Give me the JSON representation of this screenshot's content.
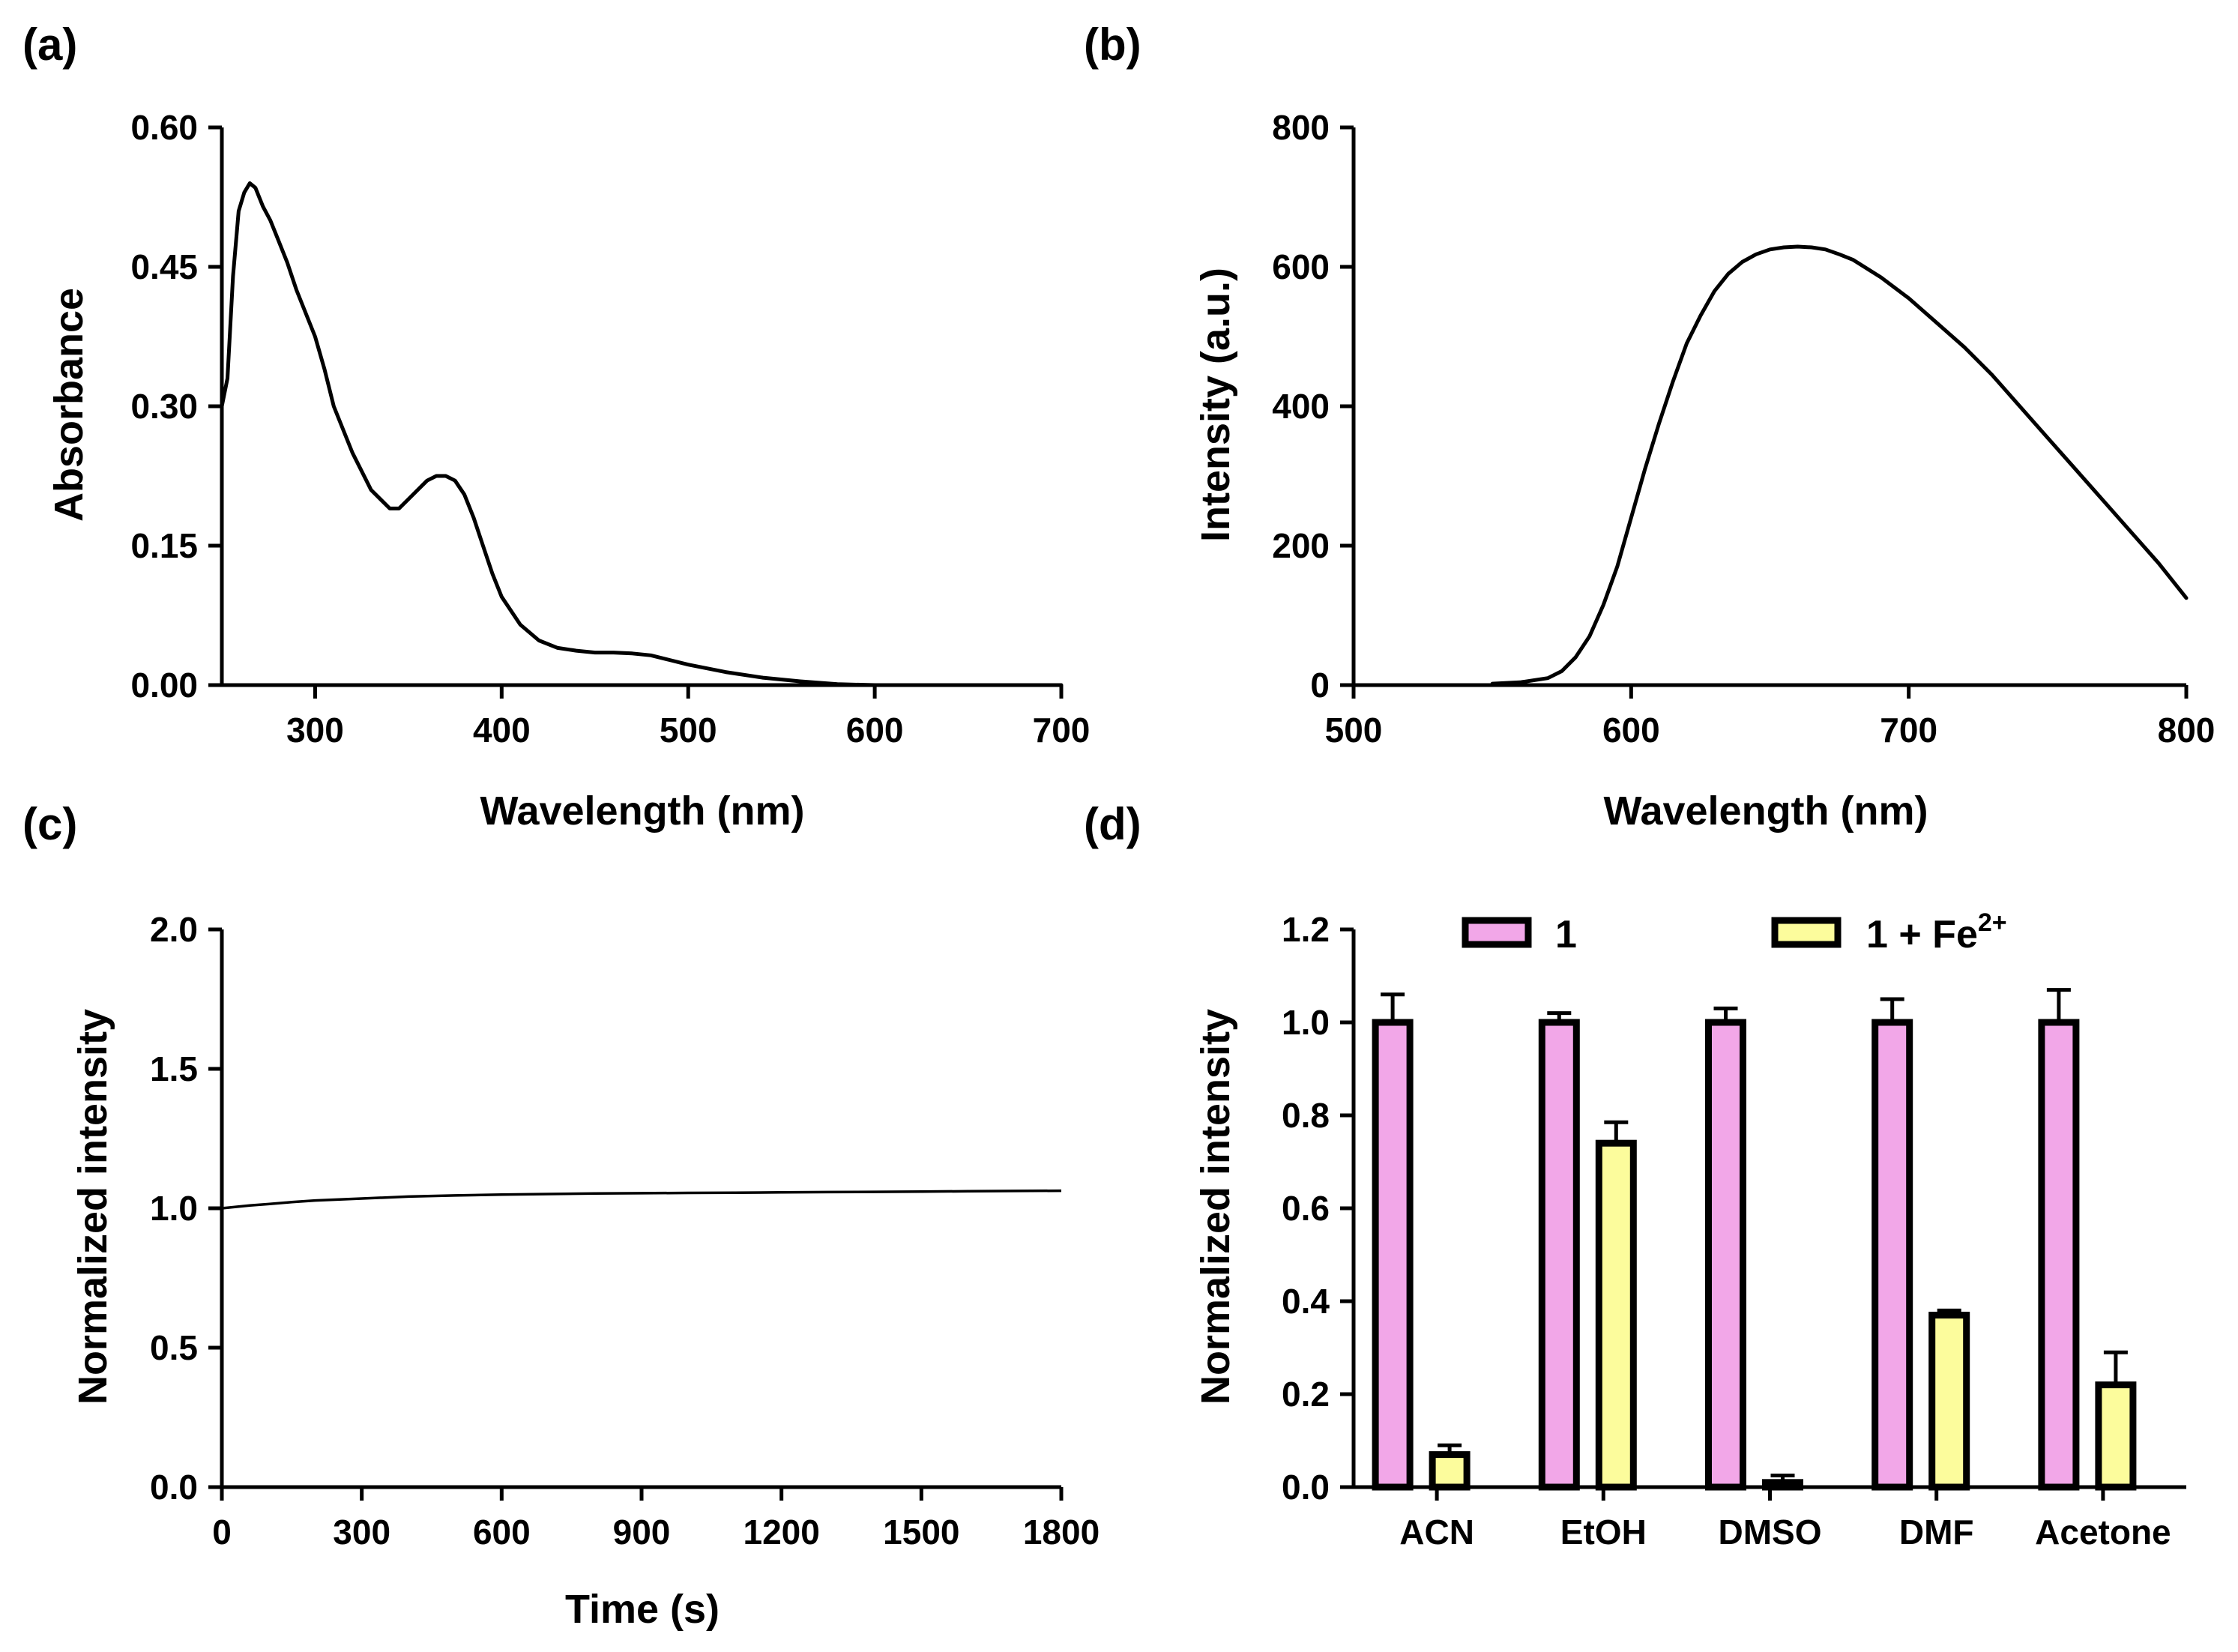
{
  "colors": {
    "series1": "#f2a7e8",
    "series2": "#fcfc9c",
    "axis": "#000000"
  },
  "chart_data": [
    {
      "id": "a",
      "panel": "(a)",
      "type": "line",
      "xlabel": "Wavelength (nm)",
      "ylabel": "Absorbance",
      "xlim": [
        250,
        700
      ],
      "ylim": [
        0,
        0.6
      ],
      "xticks": [
        300,
        400,
        500,
        600,
        700
      ],
      "xtick_labels": [
        "300",
        "400",
        "500",
        "600",
        "700"
      ],
      "yticks": [
        0,
        0.15,
        0.3,
        0.45,
        0.6
      ],
      "ytick_labels": [
        "0.00",
        "0.15",
        "0.30",
        "0.45",
        "0.60"
      ],
      "series": [
        {
          "name": "Absorbance",
          "x": [
            250,
            253,
            256,
            259,
            262,
            265,
            268,
            272,
            276,
            280,
            285,
            290,
            295,
            300,
            305,
            310,
            320,
            330,
            340,
            345,
            350,
            355,
            360,
            365,
            370,
            375,
            380,
            385,
            390,
            395,
            400,
            410,
            420,
            430,
            440,
            450,
            460,
            470,
            480,
            490,
            500,
            520,
            540,
            560,
            580,
            600,
            650,
            700
          ],
          "y": [
            0.3,
            0.33,
            0.44,
            0.51,
            0.53,
            0.54,
            0.535,
            0.515,
            0.5,
            0.48,
            0.455,
            0.425,
            0.4,
            0.375,
            0.34,
            0.3,
            0.25,
            0.21,
            0.19,
            0.19,
            0.2,
            0.21,
            0.22,
            0.225,
            0.225,
            0.22,
            0.205,
            0.18,
            0.15,
            0.12,
            0.095,
            0.065,
            0.048,
            0.04,
            0.037,
            0.035,
            0.035,
            0.034,
            0.032,
            0.027,
            0.022,
            0.014,
            0.008,
            0.004,
            0.001,
            0.0,
            0.0,
            0.0
          ]
        }
      ]
    },
    {
      "id": "b",
      "panel": "(b)",
      "type": "line",
      "xlabel": "Wavelength (nm)",
      "ylabel": "Intensity (a.u.)",
      "xlim": [
        500,
        800
      ],
      "ylim": [
        0,
        800
      ],
      "xticks": [
        500,
        600,
        700,
        800
      ],
      "xtick_labels": [
        "500",
        "600",
        "700",
        "800"
      ],
      "yticks": [
        0,
        200,
        400,
        600,
        800
      ],
      "ytick_labels": [
        "0",
        "200",
        "400",
        "600",
        "800"
      ],
      "series": [
        {
          "name": "Intensity",
          "x": [
            550,
            560,
            570,
            575,
            580,
            585,
            590,
            595,
            600,
            605,
            610,
            615,
            620,
            625,
            630,
            635,
            640,
            645,
            650,
            655,
            660,
            665,
            670,
            675,
            680,
            690,
            700,
            710,
            720,
            730,
            740,
            750,
            760,
            770,
            780,
            790,
            800
          ],
          "y": [
            2,
            4,
            10,
            20,
            40,
            70,
            115,
            170,
            240,
            310,
            375,
            435,
            490,
            530,
            565,
            590,
            607,
            618,
            625,
            628,
            629,
            628,
            625,
            618,
            610,
            585,
            555,
            520,
            485,
            445,
            400,
            355,
            310,
            265,
            220,
            175,
            125
          ]
        }
      ]
    },
    {
      "id": "c",
      "panel": "(c)",
      "type": "line",
      "xlabel": "Time (s)",
      "ylabel": "Normalized intensity",
      "xlim": [
        0,
        1800
      ],
      "ylim": [
        0,
        2.0
      ],
      "xticks": [
        0,
        300,
        600,
        900,
        1200,
        1500,
        1800
      ],
      "xtick_labels": [
        "0",
        "300",
        "600",
        "900",
        "1200",
        "1500",
        "1800"
      ],
      "yticks": [
        0,
        0.5,
        1.0,
        1.5,
        2.0
      ],
      "ytick_labels": [
        "0.0",
        "0.5",
        "1.0",
        "1.5",
        "2.0"
      ],
      "series": [
        {
          "name": "Normalized intensity",
          "x": [
            0,
            30,
            60,
            100,
            150,
            200,
            300,
            400,
            500,
            600,
            700,
            800,
            900,
            1000,
            1100,
            1200,
            1300,
            1400,
            1500,
            1600,
            1700,
            1800
          ],
          "y": [
            1.0,
            1.005,
            1.01,
            1.015,
            1.022,
            1.028,
            1.035,
            1.042,
            1.046,
            1.049,
            1.051,
            1.053,
            1.054,
            1.055,
            1.056,
            1.057,
            1.058,
            1.059,
            1.06,
            1.061,
            1.062,
            1.063
          ]
        }
      ]
    },
    {
      "id": "d",
      "panel": "(d)",
      "type": "bar",
      "ylabel": "Normalized intensity",
      "ylim": [
        0,
        1.2
      ],
      "yticks": [
        0,
        0.2,
        0.4,
        0.6,
        0.8,
        1.0,
        1.2
      ],
      "ytick_labels": [
        "0.0",
        "0.2",
        "0.4",
        "0.6",
        "0.8",
        "1.0",
        "1.2"
      ],
      "categories": [
        "ACN",
        "EtOH",
        "DMSO",
        "DMF",
        "Acetone"
      ],
      "legend": {
        "placement": "top",
        "series1_label": "1",
        "series2_label_base": "1 + Fe",
        "series2_label_sup": "2+"
      },
      "series": [
        {
          "name": "1",
          "values": [
            1.0,
            1.0,
            1.0,
            1.0,
            1.0
          ],
          "errors": [
            0.06,
            0.02,
            0.03,
            0.05,
            0.07
          ]
        },
        {
          "name": "1 + Fe2+",
          "values": [
            0.07,
            0.74,
            0.01,
            0.37,
            0.22
          ],
          "errors": [
            0.02,
            0.045,
            0.015,
            0.01,
            0.07
          ]
        }
      ]
    }
  ]
}
